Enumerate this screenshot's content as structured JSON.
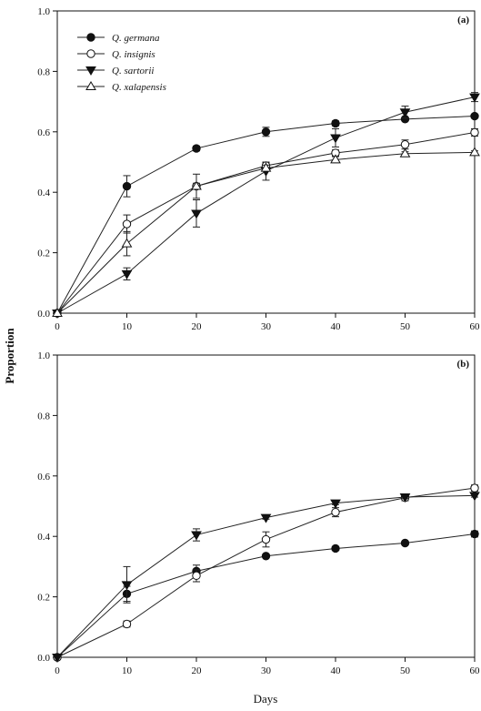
{
  "chart_data": [
    {
      "type": "line",
      "panel_label": "(a)",
      "x": [
        0,
        10,
        20,
        30,
        40,
        50,
        60
      ],
      "xlim": [
        0,
        60
      ],
      "ylim": [
        0,
        1.0
      ],
      "x_ticks": [
        "0",
        "10",
        "20",
        "30",
        "40",
        "50",
        "60"
      ],
      "y_ticks": [
        "0.0",
        "0.2",
        "0.4",
        "0.6",
        "0.8",
        "1.0"
      ],
      "legend_position": "top-left",
      "series": [
        {
          "name": "Q. germana",
          "marker": "filled-circle",
          "values": [
            0,
            0.42,
            0.545,
            0.6,
            0.628,
            0.642,
            0.652
          ],
          "errors": [
            0,
            0.035,
            0.008,
            0.015,
            0.008,
            0.006,
            0.005
          ]
        },
        {
          "name": "Q. insignis",
          "marker": "open-circle",
          "values": [
            0,
            0.295,
            0.42,
            0.488,
            0.53,
            0.558,
            0.598
          ],
          "errors": [
            0,
            0.03,
            0.01,
            0.01,
            0.01,
            0.015,
            0.012
          ]
        },
        {
          "name": "Q. sartorii",
          "marker": "filled-triangle-down",
          "values": [
            0,
            0.13,
            0.33,
            0.47,
            0.58,
            0.665,
            0.715
          ],
          "errors": [
            0,
            0.02,
            0.045,
            0.03,
            0.03,
            0.02,
            0.015
          ]
        },
        {
          "name": "Q. xalapensis",
          "marker": "open-triangle-up",
          "values": [
            0,
            0.23,
            0.42,
            0.48,
            0.508,
            0.528,
            0.532
          ],
          "errors": [
            0,
            0.04,
            0.04,
            0.01,
            0.01,
            0.006,
            0.005
          ]
        }
      ]
    },
    {
      "type": "line",
      "panel_label": "(b)",
      "x": [
        0,
        10,
        20,
        30,
        40,
        50,
        60
      ],
      "xlim": [
        0,
        60
      ],
      "ylim": [
        0,
        1.0
      ],
      "x_ticks": [
        "0",
        "10",
        "20",
        "30",
        "40",
        "50",
        "60"
      ],
      "y_ticks": [
        "0.0",
        "0.2",
        "0.4",
        "0.6",
        "0.8",
        "1.0"
      ],
      "series": [
        {
          "name": "Q. germana",
          "marker": "filled-circle",
          "values": [
            0,
            0.21,
            0.285,
            0.335,
            0.36,
            0.378,
            0.408
          ],
          "errors": [
            0,
            0.025,
            0.02,
            0.006,
            0.006,
            0.006,
            0.01
          ]
        },
        {
          "name": "Q. insignis",
          "marker": "open-circle",
          "values": [
            0,
            0.11,
            0.27,
            0.39,
            0.48,
            0.528,
            0.56
          ],
          "errors": [
            0,
            0.01,
            0.02,
            0.025,
            0.015,
            0.01,
            0.01
          ]
        },
        {
          "name": "Q. sartorii",
          "marker": "filled-triangle-down",
          "values": [
            0,
            0.24,
            0.405,
            0.462,
            0.51,
            0.53,
            0.535
          ],
          "errors": [
            0,
            0.06,
            0.02,
            0.005,
            0.005,
            0.005,
            0.005
          ]
        }
      ]
    }
  ],
  "xlabel": "Days",
  "ylabel": "Proportion"
}
